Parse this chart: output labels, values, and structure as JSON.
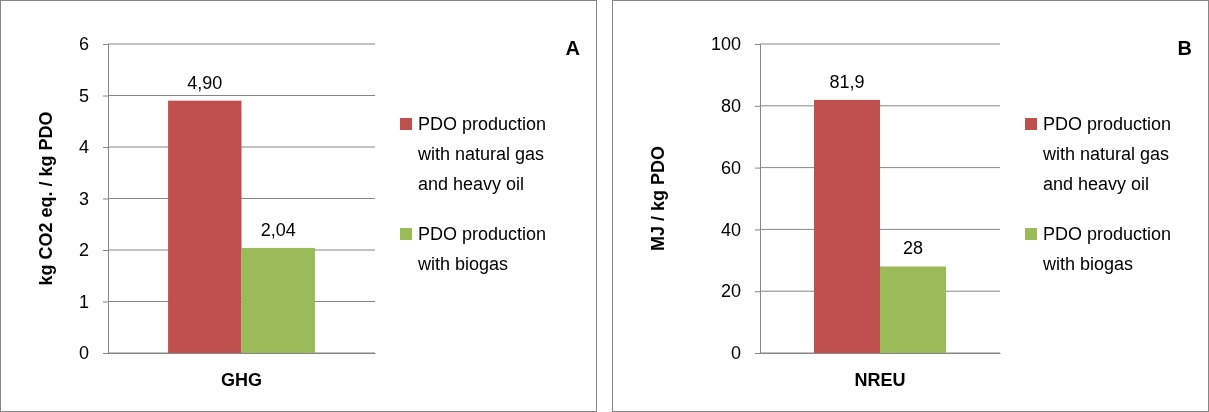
{
  "chart_data": [
    {
      "type": "bar",
      "annotations": [
        "A"
      ],
      "ylabel": "kg CO2 eq. / kg PDO",
      "categories": [
        "GHG"
      ],
      "ylim": [
        0,
        6
      ],
      "yticks": [
        0,
        1,
        2,
        3,
        4,
        5,
        6
      ],
      "grid": "y",
      "legend": "right",
      "series": [
        {
          "name": "PDO production with natural gas and heavy oil",
          "color": "#c0504d",
          "values": [
            4.9
          ],
          "value_labels": [
            "4,90"
          ]
        },
        {
          "name": "PDO production with biogas",
          "color": "#9bbb59",
          "values": [
            2.04
          ],
          "value_labels": [
            "2,04"
          ]
        }
      ]
    },
    {
      "type": "bar",
      "annotations": [
        "B"
      ],
      "ylabel": "MJ / kg PDO",
      "categories": [
        "NREU"
      ],
      "ylim": [
        0,
        100
      ],
      "yticks": [
        0,
        20,
        40,
        60,
        80,
        100
      ],
      "grid": "y",
      "legend": "right",
      "series": [
        {
          "name": "PDO production with natural gas and heavy oil",
          "color": "#c0504d",
          "values": [
            81.9
          ],
          "value_labels": [
            "81,9"
          ]
        },
        {
          "name": "PDO production with biogas",
          "color": "#9bbb59",
          "values": [
            28
          ],
          "value_labels": [
            "28"
          ]
        }
      ]
    }
  ]
}
